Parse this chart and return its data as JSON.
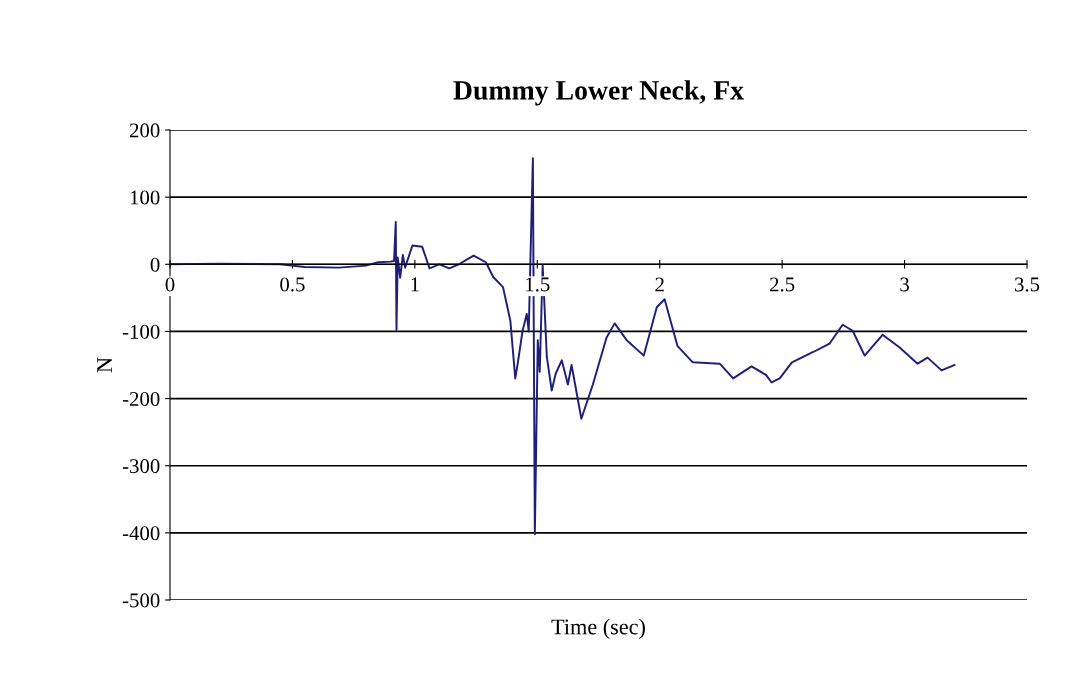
{
  "chart_data": {
    "type": "line",
    "title": "Dummy Lower Neck, Fx",
    "xlabel": "Time (sec)",
    "ylabel": "N",
    "series": [
      {
        "color": "#1f1f7a",
        "x": [
          0,
          0.2,
          0.45,
          0.55,
          0.69,
          0.8,
          0.85,
          0.9,
          0.915,
          0.922,
          0.925,
          0.93,
          0.94,
          0.951,
          0.96,
          0.99,
          1.03,
          1.06,
          1.1,
          1.14,
          1.18,
          1.24,
          1.29,
          1.32,
          1.36,
          1.39,
          1.41,
          1.42,
          1.44,
          1.457,
          1.465,
          1.482,
          1.49,
          1.502,
          1.51,
          1.522,
          1.539,
          1.559,
          1.575,
          1.6,
          1.625,
          1.64,
          1.68,
          1.727,
          1.783,
          1.816,
          1.865,
          1.935,
          1.988,
          2.02,
          2.073,
          2.135,
          2.245,
          2.3,
          2.375,
          2.435,
          2.457,
          2.49,
          2.54,
          2.625,
          2.694,
          2.747,
          2.788,
          2.837,
          2.91,
          2.98,
          3.053,
          3.094,
          3.151,
          3.204
        ],
        "values": [
          0,
          1,
          0,
          -4,
          -5,
          -2,
          3,
          4,
          5,
          63,
          -98,
          10,
          -20,
          14,
          -5,
          28,
          26,
          -6,
          0,
          -6,
          0,
          13,
          3,
          -19,
          -34,
          -84,
          -170,
          -148,
          -99,
          -74,
          -100,
          158,
          -402,
          -113,
          -160,
          -2,
          -138,
          -188,
          -163,
          -143,
          -179,
          -150,
          -230,
          -179,
          -109,
          -88,
          -113,
          -136,
          -64,
          -52,
          -122,
          -146,
          -148,
          -170,
          -152,
          -165,
          -176,
          -170,
          -146,
          -131,
          -118,
          -90,
          -99,
          -136,
          -105,
          -124,
          -148,
          -139,
          -158,
          -150
        ]
      }
    ],
    "xlim": [
      0,
      3.5
    ],
    "xticks": [
      0,
      0.5,
      1,
      1.5,
      2,
      2.5,
      3,
      3.5
    ],
    "ylim": [
      -500,
      200
    ],
    "yticks": [
      -500,
      -400,
      -300,
      -200,
      -100,
      0,
      100,
      200
    ],
    "grid": "y",
    "legend": false
  }
}
